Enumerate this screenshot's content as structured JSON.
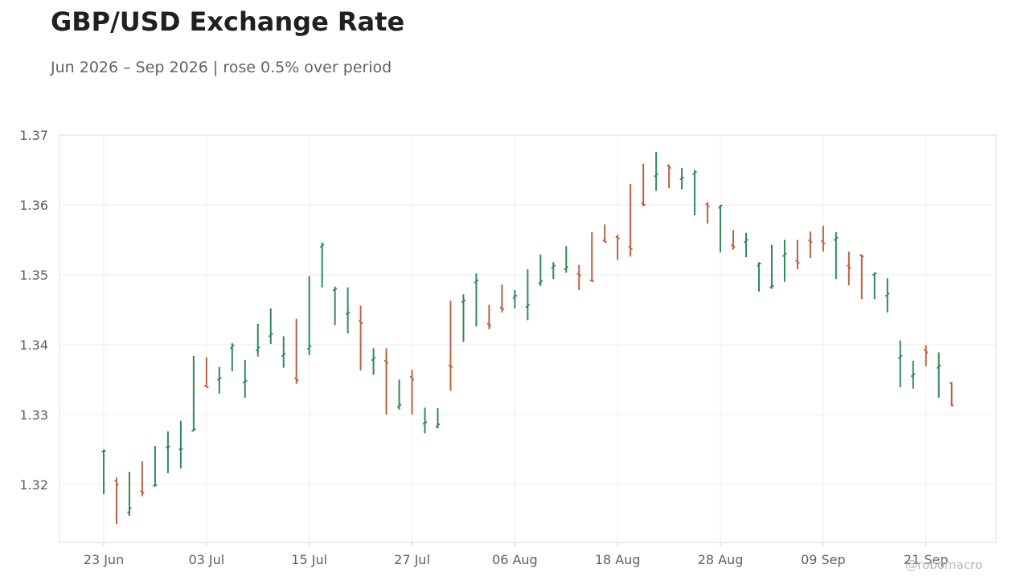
{
  "header": {
    "title": "GBP/USD Exchange Rate",
    "subtitle": "Jun 2026 – Sep 2026 | rose 0.5% over period"
  },
  "credit": "@robomacro",
  "colors": {
    "up": "#2e8b57",
    "down": "#c0603f",
    "grid": "#eeeeee",
    "axis": "#dddddd"
  },
  "chart_data": {
    "type": "ohlc",
    "title": "GBP/USD Exchange Rate",
    "subtitle": "Jun 2026 – Sep 2026 | rose 0.5% over period",
    "xlabel": "",
    "ylabel": "",
    "ylim": [
      1.3117,
      1.37
    ],
    "y_ticks": [
      "1.32",
      "1.33",
      "1.34",
      "1.35",
      "1.36",
      "1.37"
    ],
    "x_ticks": [
      "23 Jun",
      "03 Jul",
      "15 Jul",
      "27 Jul",
      "06 Aug",
      "18 Aug",
      "28 Aug",
      "09 Sep",
      "21 Sep"
    ],
    "x_tick_index": [
      0,
      8,
      16,
      24,
      32,
      40,
      48,
      56,
      64
    ],
    "grid": true,
    "bars": [
      {
        "date": "23 Jun",
        "open": 1.3247,
        "high": 1.325,
        "low": 1.3186,
        "close": 1.3248
      },
      {
        "date": "24 Jun",
        "open": 1.3205,
        "high": 1.321,
        "low": 1.3143,
        "close": 1.32
      },
      {
        "date": "25 Jun",
        "open": 1.316,
        "high": 1.3218,
        "low": 1.3155,
        "close": 1.3166
      },
      {
        "date": "26 Jun",
        "open": 1.319,
        "high": 1.3233,
        "low": 1.3183,
        "close": 1.3188
      },
      {
        "date": "29 Jun",
        "open": 1.3198,
        "high": 1.3255,
        "low": 1.3197,
        "close": 1.3199
      },
      {
        "date": "30 Jun",
        "open": 1.3253,
        "high": 1.3276,
        "low": 1.3216,
        "close": 1.3254
      },
      {
        "date": "01 Jul",
        "open": 1.325,
        "high": 1.3291,
        "low": 1.3223,
        "close": 1.3251
      },
      {
        "date": "02 Jul",
        "open": 1.3277,
        "high": 1.3384,
        "low": 1.3276,
        "close": 1.3279
      },
      {
        "date": "03 Jul",
        "open": 1.3341,
        "high": 1.3382,
        "low": 1.3339,
        "close": 1.3339
      },
      {
        "date": "06 Jul",
        "open": 1.335,
        "high": 1.3368,
        "low": 1.333,
        "close": 1.3352
      },
      {
        "date": "07 Jul",
        "open": 1.3395,
        "high": 1.3402,
        "low": 1.3362,
        "close": 1.3399
      },
      {
        "date": "08 Jul",
        "open": 1.3346,
        "high": 1.3378,
        "low": 1.3324,
        "close": 1.3348
      },
      {
        "date": "09 Jul",
        "open": 1.3392,
        "high": 1.343,
        "low": 1.3383,
        "close": 1.3396
      },
      {
        "date": "10 Jul",
        "open": 1.3412,
        "high": 1.3452,
        "low": 1.3401,
        "close": 1.3415
      },
      {
        "date": "13 Jul",
        "open": 1.3384,
        "high": 1.3412,
        "low": 1.3367,
        "close": 1.3387
      },
      {
        "date": "14 Jul",
        "open": 1.3352,
        "high": 1.3437,
        "low": 1.3344,
        "close": 1.3349
      },
      {
        "date": "15 Jul",
        "open": 1.3394,
        "high": 1.3498,
        "low": 1.3385,
        "close": 1.3398
      },
      {
        "date": "16 Jul",
        "open": 1.354,
        "high": 1.3546,
        "low": 1.3482,
        "close": 1.3543
      },
      {
        "date": "17 Jul",
        "open": 1.3478,
        "high": 1.3483,
        "low": 1.3428,
        "close": 1.348
      },
      {
        "date": "20 Jul",
        "open": 1.3444,
        "high": 1.3482,
        "low": 1.3416,
        "close": 1.3446
      },
      {
        "date": "21 Jul",
        "open": 1.3434,
        "high": 1.3456,
        "low": 1.3363,
        "close": 1.3431
      },
      {
        "date": "22 Jul",
        "open": 1.3378,
        "high": 1.3395,
        "low": 1.3357,
        "close": 1.3381
      },
      {
        "date": "23 Jul",
        "open": 1.3377,
        "high": 1.3395,
        "low": 1.33,
        "close": 1.3374
      },
      {
        "date": "24 Jul",
        "open": 1.3311,
        "high": 1.335,
        "low": 1.3307,
        "close": 1.3314
      },
      {
        "date": "27 Jul",
        "open": 1.3354,
        "high": 1.3364,
        "low": 1.33,
        "close": 1.335
      },
      {
        "date": "28 Jul",
        "open": 1.3287,
        "high": 1.331,
        "low": 1.3273,
        "close": 1.3289
      },
      {
        "date": "29 Jul",
        "open": 1.3283,
        "high": 1.3309,
        "low": 1.328,
        "close": 1.3286
      },
      {
        "date": "30 Jul",
        "open": 1.337,
        "high": 1.3463,
        "low": 1.3334,
        "close": 1.3368
      },
      {
        "date": "31 Jul",
        "open": 1.3461,
        "high": 1.3472,
        "low": 1.3404,
        "close": 1.3463
      },
      {
        "date": "03 Aug",
        "open": 1.3489,
        "high": 1.3502,
        "low": 1.3426,
        "close": 1.3492
      },
      {
        "date": "04 Aug",
        "open": 1.343,
        "high": 1.3457,
        "low": 1.3422,
        "close": 1.3427
      },
      {
        "date": "05 Aug",
        "open": 1.3453,
        "high": 1.3486,
        "low": 1.3446,
        "close": 1.3451
      },
      {
        "date": "06 Aug",
        "open": 1.3467,
        "high": 1.3478,
        "low": 1.3452,
        "close": 1.347
      },
      {
        "date": "07 Aug",
        "open": 1.3454,
        "high": 1.3508,
        "low": 1.3435,
        "close": 1.3457
      },
      {
        "date": "10 Aug",
        "open": 1.3488,
        "high": 1.3529,
        "low": 1.3484,
        "close": 1.3491
      },
      {
        "date": "11 Aug",
        "open": 1.351,
        "high": 1.3518,
        "low": 1.3494,
        "close": 1.3513
      },
      {
        "date": "12 Aug",
        "open": 1.3508,
        "high": 1.3541,
        "low": 1.3503,
        "close": 1.3511
      },
      {
        "date": "13 Aug",
        "open": 1.3501,
        "high": 1.3514,
        "low": 1.3478,
        "close": 1.3499
      },
      {
        "date": "14 Aug",
        "open": 1.3492,
        "high": 1.3561,
        "low": 1.349,
        "close": 1.3491
      },
      {
        "date": "17 Aug",
        "open": 1.3549,
        "high": 1.3572,
        "low": 1.3547,
        "close": 1.3547
      },
      {
        "date": "18 Aug",
        "open": 1.3554,
        "high": 1.3557,
        "low": 1.3521,
        "close": 1.3552
      },
      {
        "date": "19 Aug",
        "open": 1.354,
        "high": 1.363,
        "low": 1.3526,
        "close": 1.3537
      },
      {
        "date": "20 Aug",
        "open": 1.3602,
        "high": 1.3659,
        "low": 1.3598,
        "close": 1.36
      },
      {
        "date": "21 Aug",
        "open": 1.3641,
        "high": 1.3676,
        "low": 1.362,
        "close": 1.3644
      },
      {
        "date": "24 Aug",
        "open": 1.3656,
        "high": 1.3658,
        "low": 1.3624,
        "close": 1.3653
      },
      {
        "date": "25 Aug",
        "open": 1.3637,
        "high": 1.3653,
        "low": 1.3622,
        "close": 1.3639
      },
      {
        "date": "26 Aug",
        "open": 1.3644,
        "high": 1.365,
        "low": 1.3585,
        "close": 1.3647
      },
      {
        "date": "27 Aug",
        "open": 1.3601,
        "high": 1.3604,
        "low": 1.3573,
        "close": 1.3598
      },
      {
        "date": "28 Aug",
        "open": 1.3596,
        "high": 1.36,
        "low": 1.3532,
        "close": 1.3599
      },
      {
        "date": "31 Aug",
        "open": 1.3542,
        "high": 1.3564,
        "low": 1.3536,
        "close": 1.354
      },
      {
        "date": "01 Sep",
        "open": 1.3547,
        "high": 1.356,
        "low": 1.3525,
        "close": 1.355
      },
      {
        "date": "02 Sep",
        "open": 1.3513,
        "high": 1.3518,
        "low": 1.3476,
        "close": 1.3516
      },
      {
        "date": "03 Sep",
        "open": 1.3482,
        "high": 1.3543,
        "low": 1.348,
        "close": 1.3484
      },
      {
        "date": "04 Sep",
        "open": 1.3527,
        "high": 1.355,
        "low": 1.349,
        "close": 1.353
      },
      {
        "date": "07 Sep",
        "open": 1.352,
        "high": 1.355,
        "low": 1.3508,
        "close": 1.3517
      },
      {
        "date": "08 Sep",
        "open": 1.3549,
        "high": 1.3562,
        "low": 1.3524,
        "close": 1.3547
      },
      {
        "date": "09 Sep",
        "open": 1.3548,
        "high": 1.357,
        "low": 1.3533,
        "close": 1.3545
      },
      {
        "date": "10 Sep",
        "open": 1.355,
        "high": 1.3561,
        "low": 1.3494,
        "close": 1.3553
      },
      {
        "date": "11 Sep",
        "open": 1.3513,
        "high": 1.3533,
        "low": 1.3485,
        "close": 1.351
      },
      {
        "date": "14 Sep",
        "open": 1.3528,
        "high": 1.3529,
        "low": 1.3465,
        "close": 1.3526
      },
      {
        "date": "15 Sep",
        "open": 1.35,
        "high": 1.3503,
        "low": 1.3465,
        "close": 1.3502
      },
      {
        "date": "16 Sep",
        "open": 1.347,
        "high": 1.3495,
        "low": 1.3446,
        "close": 1.3473
      },
      {
        "date": "17 Sep",
        "open": 1.3381,
        "high": 1.3406,
        "low": 1.3339,
        "close": 1.3384
      },
      {
        "date": "18 Sep",
        "open": 1.3355,
        "high": 1.3377,
        "low": 1.3337,
        "close": 1.3358
      },
      {
        "date": "21 Sep",
        "open": 1.3392,
        "high": 1.3399,
        "low": 1.3369,
        "close": 1.3389
      },
      {
        "date": "22 Sep",
        "open": 1.3367,
        "high": 1.3389,
        "low": 1.3324,
        "close": 1.337
      },
      {
        "date": "23 Sep",
        "open": 1.3345,
        "high": 1.3346,
        "low": 1.3312,
        "close": 1.3313
      }
    ]
  }
}
